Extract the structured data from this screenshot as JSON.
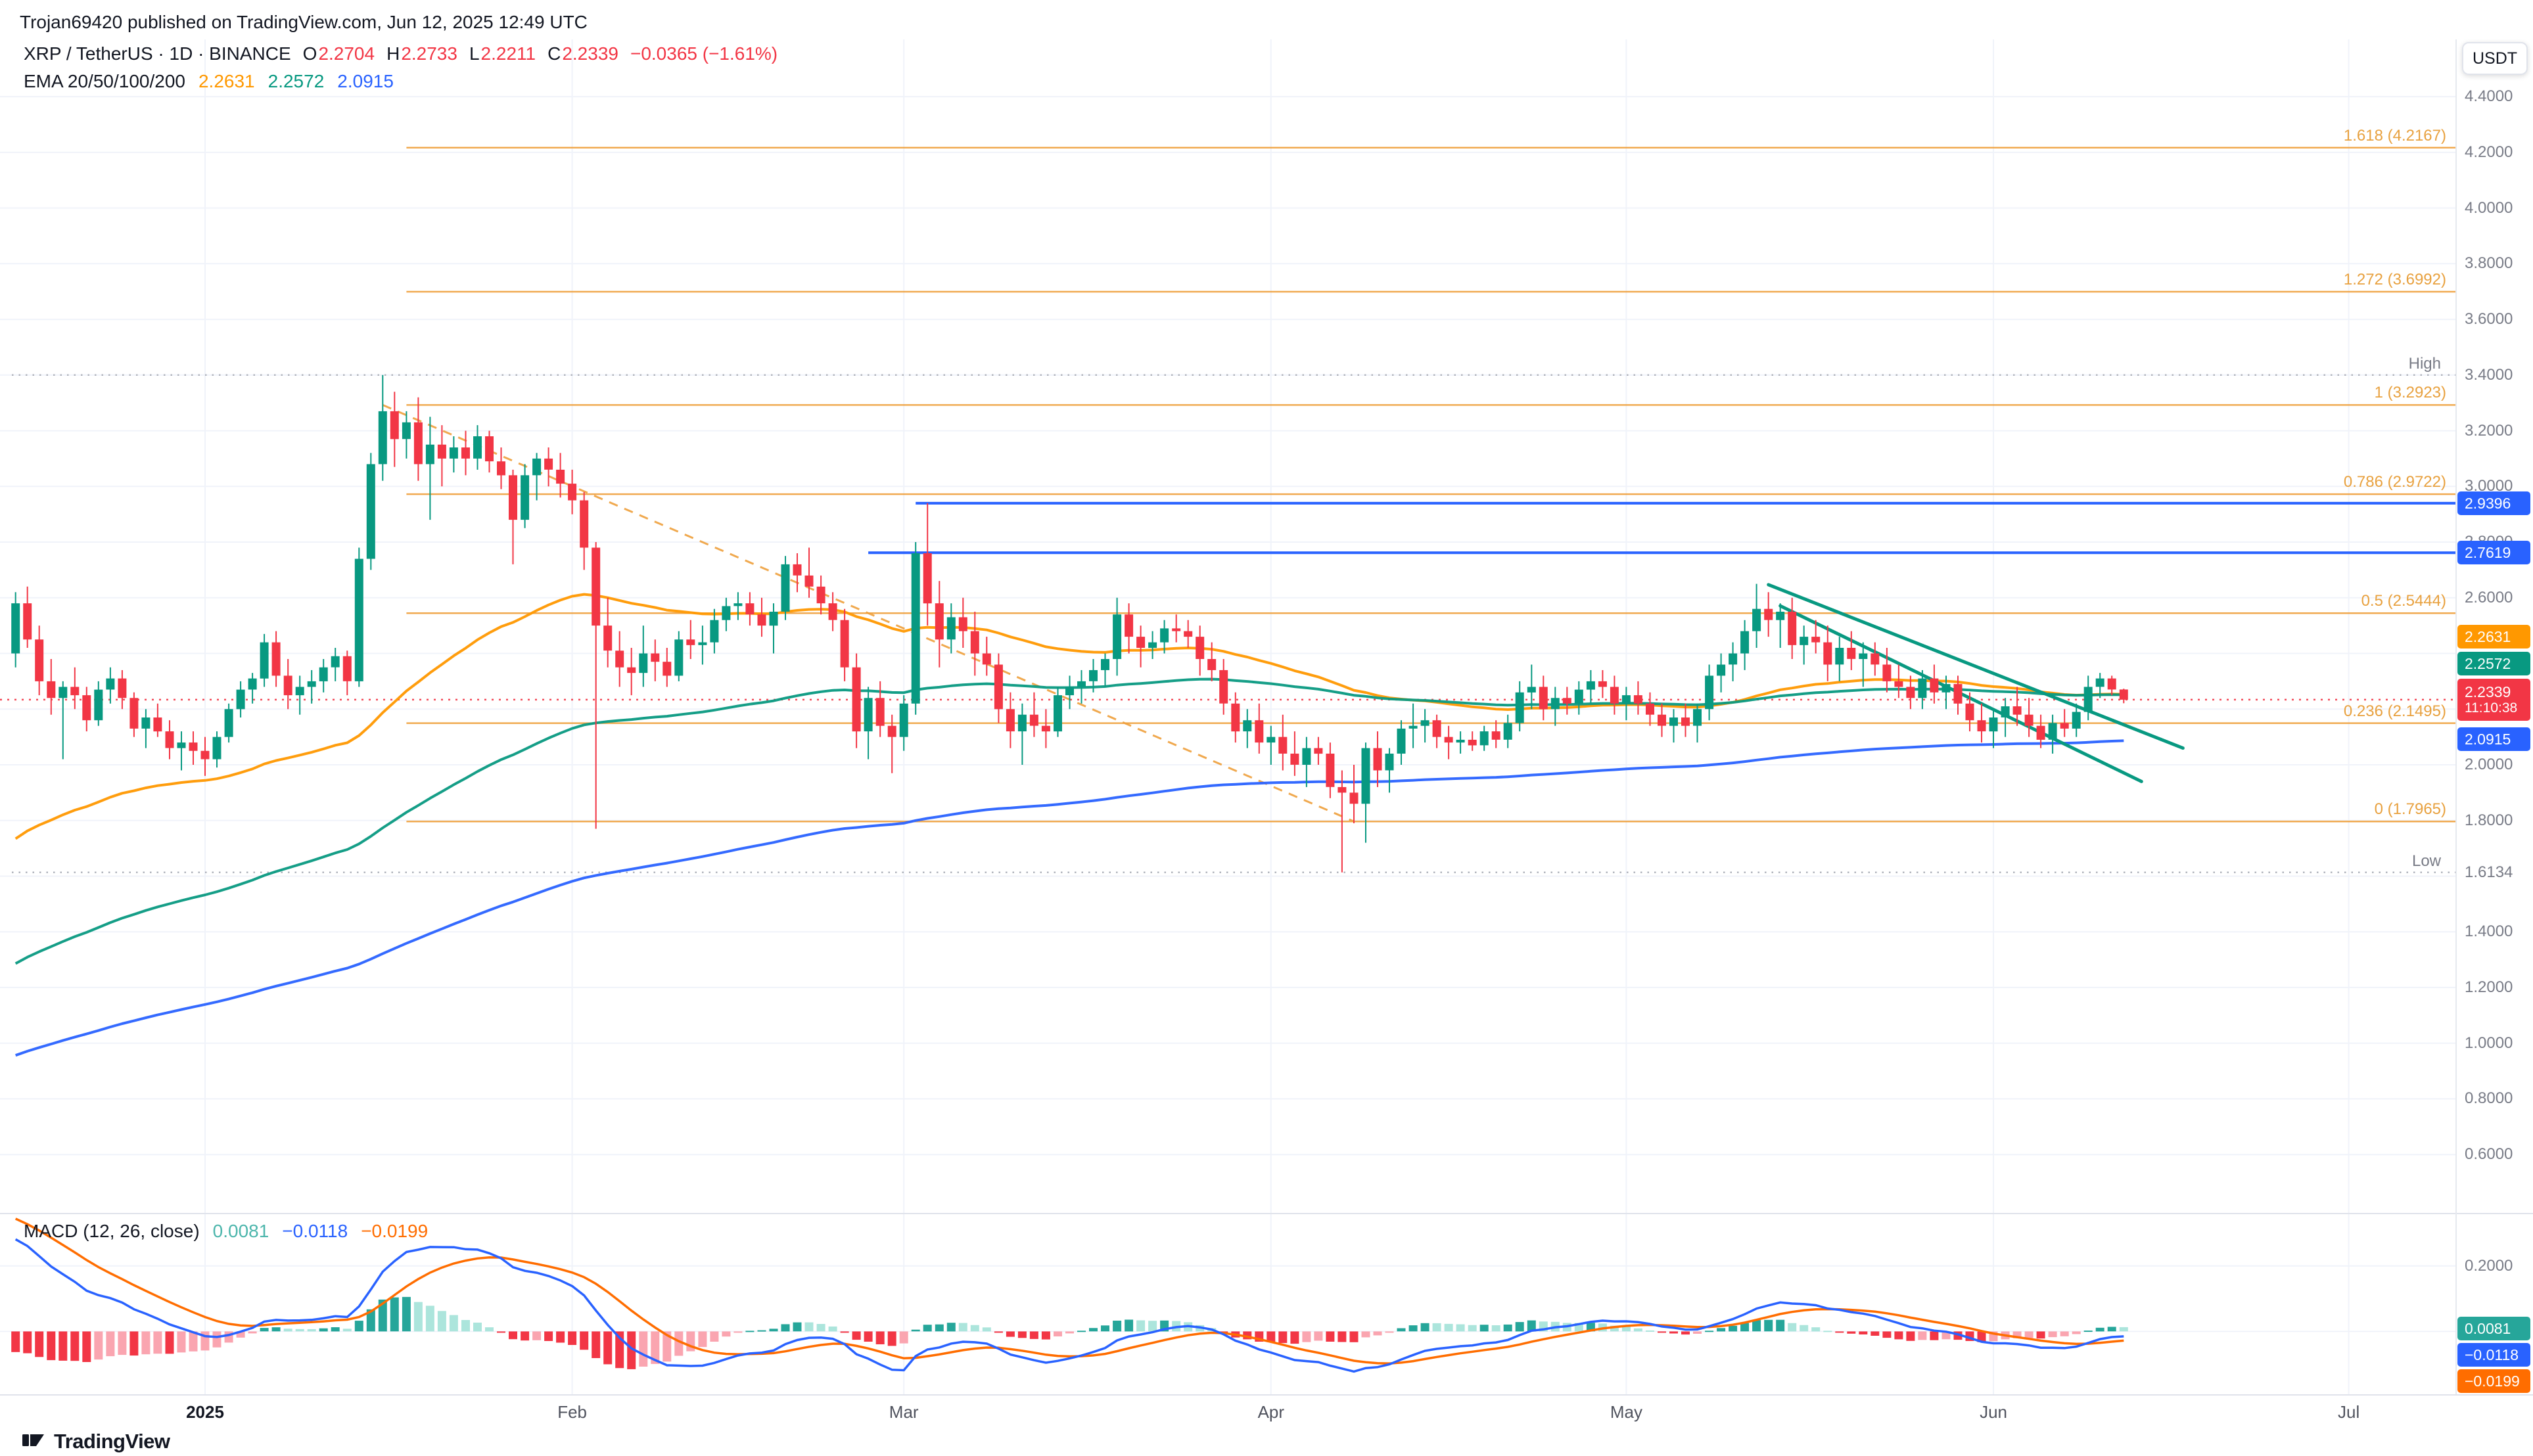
{
  "header": {
    "text": "Trojan69420 published on TradingView.com, Jun 12, 2025 12:49 UTC"
  },
  "toolbar": {
    "currency_button": "USDT"
  },
  "legend": {
    "title": "XRP / TetherUS · 1D · BINANCE",
    "ohlc": {
      "o": {
        "label": "O",
        "value": "2.2704"
      },
      "h": {
        "label": "H",
        "value": "2.2733"
      },
      "l": {
        "label": "L",
        "value": "2.2211"
      },
      "c": {
        "label": "C",
        "value": "2.2339"
      },
      "change": "−0.0365 (−1.61%)"
    },
    "ema": {
      "label": "EMA 20/50/100/200",
      "values": [
        {
          "text": "2.2631",
          "color": "#FF9800"
        },
        {
          "text": "2.2572",
          "color": "#089981"
        },
        {
          "text": "2.0915",
          "color": "#2962FF"
        }
      ]
    }
  },
  "macd_legend": {
    "label": "MACD (12, 26, close)",
    "values": [
      {
        "text": "0.0081",
        "color": "#4DB6AC"
      },
      {
        "text": "−0.0118",
        "color": "#2962FF"
      },
      {
        "text": "−0.0199",
        "color": "#FF6D00"
      }
    ]
  },
  "price_axis": {
    "high_label": "High",
    "low_label": "Low",
    "ticks": [
      {
        "text": "4.4000",
        "price": 4.4
      },
      {
        "text": "4.2000",
        "price": 4.2
      },
      {
        "text": "4.0000",
        "price": 4.0
      },
      {
        "text": "3.8000",
        "price": 3.8
      },
      {
        "text": "3.6000",
        "price": 3.6
      },
      {
        "text": "3.4000",
        "price": 3.4
      },
      {
        "text": "3.2000",
        "price": 3.2
      },
      {
        "text": "3.0000",
        "price": 3.0
      },
      {
        "text": "2.8000",
        "price": 2.8
      },
      {
        "text": "2.6000",
        "price": 2.6
      },
      {
        "text": "2.0000",
        "price": 2.0
      },
      {
        "text": "1.8000",
        "price": 1.8
      },
      {
        "text": "1.6134",
        "price": 1.6134
      },
      {
        "text": "1.4000",
        "price": 1.4
      },
      {
        "text": "1.2000",
        "price": 1.2
      },
      {
        "text": "1.0000",
        "price": 1.0
      },
      {
        "text": "0.8000",
        "price": 0.8
      },
      {
        "text": "0.6000",
        "price": 0.6
      }
    ],
    "badges": [
      {
        "text": "2.9396",
        "price": 2.9396,
        "bg": "#2962FF"
      },
      {
        "text": "2.7619",
        "price": 2.7619,
        "bg": "#2962FF"
      },
      {
        "text": "2.2631",
        "price": 2.2631,
        "bg": "#FF9800"
      },
      {
        "text": "2.2572",
        "price": 2.2572,
        "bg": "#089981"
      },
      {
        "text": "2.2339",
        "sub": "11:10:38",
        "price": 2.2339,
        "bg": "#F23645",
        "anchor": true
      },
      {
        "text": "2.0915",
        "price": 2.0915,
        "bg": "#2962FF"
      }
    ]
  },
  "macd_axis": {
    "ticks": [
      {
        "text": "0.2000",
        "value": 0.2
      }
    ],
    "badges": [
      {
        "text": "0.0081",
        "value": 0.0081,
        "bg": "#26A69A"
      },
      {
        "text": "−0.0118",
        "value": -0.0118,
        "bg": "#2962FF"
      },
      {
        "text": "−0.0199",
        "value": -0.0199,
        "bg": "#FF6D00"
      }
    ]
  },
  "time_axis": {
    "labels": [
      {
        "text": "2025",
        "index": 16,
        "major": true
      },
      {
        "text": "Feb",
        "index": 47
      },
      {
        "text": "Mar",
        "index": 75
      },
      {
        "text": "Apr",
        "index": 106
      },
      {
        "text": "May",
        "index": 136
      },
      {
        "text": "Jun",
        "index": 167
      },
      {
        "text": "Jul",
        "index": 197
      }
    ]
  },
  "footer": {
    "brand": "TradingView"
  },
  "colors": {
    "up": "#089981",
    "down": "#F23645",
    "grid": "#F0F3FA",
    "axis_text": "#787B86",
    "dark_text": "#131722",
    "fib": "#EFA03C",
    "trendline": "#089981",
    "macd_line": "#2962FF",
    "macd_signal": "#FF6D00",
    "hist_up": "#26A69A",
    "hist_up_light": "#ACE5DC",
    "hist_down": "#F23645",
    "hist_down_light": "#FAA5B0",
    "hl_dotted": "#B2B5BE"
  },
  "chart_data": {
    "type": "candlestick",
    "title": "XRP / TetherUS 1D BINANCE",
    "start_date": "2024-12-16",
    "ylim": [
      0.3927,
      4.6056
    ],
    "month_indices": [
      16,
      47,
      75,
      106,
      136,
      167,
      197
    ],
    "fib_start_index": 33,
    "fib_levels": [
      {
        "label": "1.618 (4.2167)",
        "price": 4.2167
      },
      {
        "label": "1.272 (3.6992)",
        "price": 3.6992
      },
      {
        "label": "1 (3.2923)",
        "price": 3.2923
      },
      {
        "label": "0.786 (2.9722)",
        "price": 2.9722
      },
      {
        "label": "0.5 (2.5444)",
        "price": 2.5444
      },
      {
        "label": "0.236 (2.1495)",
        "price": 2.1495
      },
      {
        "label": "0 (1.7965)",
        "price": 1.7965
      }
    ],
    "fib_trendline": {
      "from": {
        "index": 31,
        "price": 3.2923
      },
      "to": {
        "index": 113,
        "price": 1.7965
      }
    },
    "hlines": [
      {
        "price": 2.9396,
        "color": "#2962FF",
        "start_index": 76
      },
      {
        "price": 2.7619,
        "color": "#2962FF",
        "start_index": 72
      }
    ],
    "trendlines": [
      {
        "from": {
          "index": 148,
          "price": 2.647
        },
        "to": {
          "index": 183,
          "price": 2.06
        }
      },
      {
        "from": {
          "index": 149,
          "price": 2.571
        },
        "to": {
          "index": 179.5,
          "price": 1.94
        }
      }
    ],
    "high_marker": {
      "price": 3.4
    },
    "low_marker": {
      "price": 1.6134
    },
    "last_price": 2.2339,
    "countdown": "11:10:38",
    "emas": [
      {
        "period": 50,
        "seed": 1.7,
        "color": "#FF9800"
      },
      {
        "period": 100,
        "seed": 1.26,
        "color": "#089981"
      },
      {
        "period": 200,
        "seed": 0.94,
        "color": "#2962FF"
      }
    ],
    "macd": {
      "fast": 12,
      "slow": 26,
      "signal": 9,
      "seeds": {
        "ema12": 2.42,
        "ema26": 2.13,
        "signal": 0.36
      },
      "ylim": [
        -0.192,
        0.354
      ],
      "gridline": 0.2,
      "display_values": {
        "histogram": 0.0081,
        "macd": -0.0118,
        "signal": -0.0199
      }
    },
    "candles": [
      [
        2.4,
        2.62,
        2.35,
        2.58
      ],
      [
        2.58,
        2.64,
        2.42,
        2.45
      ],
      [
        2.45,
        2.5,
        2.25,
        2.3
      ],
      [
        2.3,
        2.38,
        2.18,
        2.24
      ],
      [
        2.24,
        2.3,
        2.02,
        2.28
      ],
      [
        2.28,
        2.35,
        2.2,
        2.25
      ],
      [
        2.25,
        2.28,
        2.12,
        2.16
      ],
      [
        2.16,
        2.3,
        2.14,
        2.27
      ],
      [
        2.27,
        2.35,
        2.22,
        2.31
      ],
      [
        2.31,
        2.34,
        2.2,
        2.24
      ],
      [
        2.24,
        2.26,
        2.1,
        2.13
      ],
      [
        2.13,
        2.2,
        2.06,
        2.17
      ],
      [
        2.17,
        2.22,
        2.1,
        2.12
      ],
      [
        2.12,
        2.16,
        2.02,
        2.06
      ],
      [
        2.06,
        2.12,
        1.98,
        2.08
      ],
      [
        2.08,
        2.12,
        2.0,
        2.05
      ],
      [
        2.05,
        2.1,
        1.96,
        2.02
      ],
      [
        2.02,
        2.12,
        1.99,
        2.1
      ],
      [
        2.1,
        2.22,
        2.08,
        2.2
      ],
      [
        2.2,
        2.3,
        2.17,
        2.27
      ],
      [
        2.27,
        2.33,
        2.22,
        2.31
      ],
      [
        2.31,
        2.47,
        2.28,
        2.44
      ],
      [
        2.44,
        2.48,
        2.28,
        2.32
      ],
      [
        2.32,
        2.38,
        2.2,
        2.25
      ],
      [
        2.25,
        2.32,
        2.18,
        2.28
      ],
      [
        2.28,
        2.34,
        2.22,
        2.3
      ],
      [
        2.3,
        2.38,
        2.26,
        2.35
      ],
      [
        2.35,
        2.42,
        2.3,
        2.39
      ],
      [
        2.39,
        2.41,
        2.25,
        2.3
      ],
      [
        2.3,
        2.78,
        2.28,
        2.74
      ],
      [
        2.74,
        3.12,
        2.7,
        3.08
      ],
      [
        3.08,
        3.4,
        3.02,
        3.27
      ],
      [
        3.27,
        3.34,
        3.07,
        3.17
      ],
      [
        3.17,
        3.27,
        3.1,
        3.23
      ],
      [
        3.23,
        3.32,
        3.02,
        3.08
      ],
      [
        3.08,
        3.25,
        2.88,
        3.15
      ],
      [
        3.15,
        3.22,
        3.0,
        3.1
      ],
      [
        3.1,
        3.18,
        3.05,
        3.14
      ],
      [
        3.14,
        3.2,
        3.04,
        3.1
      ],
      [
        3.1,
        3.22,
        3.06,
        3.18
      ],
      [
        3.18,
        3.2,
        3.05,
        3.09
      ],
      [
        3.09,
        3.14,
        2.99,
        3.04
      ],
      [
        3.04,
        3.06,
        2.72,
        2.88
      ],
      [
        2.88,
        3.08,
        2.85,
        3.04
      ],
      [
        3.04,
        3.12,
        2.95,
        3.1
      ],
      [
        3.1,
        3.14,
        3.0,
        3.06
      ],
      [
        3.06,
        3.12,
        2.96,
        3.01
      ],
      [
        3.01,
        3.06,
        2.9,
        2.95
      ],
      [
        2.95,
        2.98,
        2.7,
        2.78
      ],
      [
        2.78,
        2.8,
        1.77,
        2.5
      ],
      [
        2.5,
        2.6,
        2.35,
        2.41
      ],
      [
        2.41,
        2.48,
        2.28,
        2.35
      ],
      [
        2.35,
        2.42,
        2.25,
        2.33
      ],
      [
        2.33,
        2.5,
        2.28,
        2.4
      ],
      [
        2.4,
        2.45,
        2.3,
        2.37
      ],
      [
        2.37,
        2.42,
        2.28,
        2.32
      ],
      [
        2.32,
        2.48,
        2.3,
        2.45
      ],
      [
        2.45,
        2.52,
        2.38,
        2.43
      ],
      [
        2.43,
        2.5,
        2.36,
        2.44
      ],
      [
        2.44,
        2.56,
        2.4,
        2.52
      ],
      [
        2.52,
        2.6,
        2.48,
        2.57
      ],
      [
        2.57,
        2.62,
        2.52,
        2.58
      ],
      [
        2.58,
        2.62,
        2.5,
        2.54
      ],
      [
        2.54,
        2.6,
        2.46,
        2.5
      ],
      [
        2.5,
        2.58,
        2.4,
        2.55
      ],
      [
        2.55,
        2.75,
        2.52,
        2.72
      ],
      [
        2.72,
        2.76,
        2.62,
        2.68
      ],
      [
        2.68,
        2.78,
        2.6,
        2.64
      ],
      [
        2.64,
        2.68,
        2.54,
        2.58
      ],
      [
        2.58,
        2.62,
        2.48,
        2.52
      ],
      [
        2.52,
        2.56,
        2.3,
        2.35
      ],
      [
        2.35,
        2.4,
        2.06,
        2.12
      ],
      [
        2.12,
        2.28,
        2.02,
        2.24
      ],
      [
        2.24,
        2.3,
        2.1,
        2.14
      ],
      [
        2.14,
        2.18,
        1.97,
        2.1
      ],
      [
        2.1,
        2.25,
        2.05,
        2.22
      ],
      [
        2.22,
        2.8,
        2.18,
        2.76
      ],
      [
        2.76,
        2.94,
        2.5,
        2.58
      ],
      [
        2.58,
        2.66,
        2.35,
        2.45
      ],
      [
        2.45,
        2.58,
        2.4,
        2.53
      ],
      [
        2.53,
        2.6,
        2.42,
        2.48
      ],
      [
        2.48,
        2.55,
        2.32,
        2.4
      ],
      [
        2.4,
        2.46,
        2.32,
        2.36
      ],
      [
        2.36,
        2.4,
        2.15,
        2.2
      ],
      [
        2.2,
        2.26,
        2.06,
        2.12
      ],
      [
        2.12,
        2.22,
        2.0,
        2.18
      ],
      [
        2.18,
        2.26,
        2.1,
        2.14
      ],
      [
        2.14,
        2.2,
        2.06,
        2.12
      ],
      [
        2.12,
        2.28,
        2.1,
        2.25
      ],
      [
        2.25,
        2.32,
        2.2,
        2.28
      ],
      [
        2.28,
        2.34,
        2.22,
        2.3
      ],
      [
        2.3,
        2.38,
        2.26,
        2.34
      ],
      [
        2.34,
        2.4,
        2.28,
        2.38
      ],
      [
        2.38,
        2.6,
        2.32,
        2.54
      ],
      [
        2.54,
        2.58,
        2.4,
        2.46
      ],
      [
        2.46,
        2.5,
        2.35,
        2.42
      ],
      [
        2.42,
        2.48,
        2.38,
        2.44
      ],
      [
        2.44,
        2.52,
        2.4,
        2.49
      ],
      [
        2.49,
        2.54,
        2.44,
        2.48
      ],
      [
        2.48,
        2.52,
        2.42,
        2.46
      ],
      [
        2.46,
        2.5,
        2.32,
        2.38
      ],
      [
        2.38,
        2.44,
        2.3,
        2.34
      ],
      [
        2.34,
        2.38,
        2.18,
        2.22
      ],
      [
        2.22,
        2.26,
        2.08,
        2.12
      ],
      [
        2.12,
        2.2,
        2.06,
        2.16
      ],
      [
        2.16,
        2.22,
        2.04,
        2.08
      ],
      [
        2.08,
        2.14,
        2.0,
        2.1
      ],
      [
        2.1,
        2.18,
        1.98,
        2.04
      ],
      [
        2.04,
        2.12,
        1.96,
        2.0
      ],
      [
        2.0,
        2.1,
        1.92,
        2.06
      ],
      [
        2.06,
        2.1,
        2.0,
        2.04
      ],
      [
        2.04,
        2.08,
        1.88,
        1.92
      ],
      [
        1.92,
        1.98,
        1.6134,
        1.9
      ],
      [
        1.9,
        2.0,
        1.79,
        1.86
      ],
      [
        1.86,
        2.08,
        1.72,
        2.06
      ],
      [
        2.06,
        2.12,
        1.92,
        1.98
      ],
      [
        1.98,
        2.06,
        1.9,
        2.04
      ],
      [
        2.04,
        2.16,
        2.0,
        2.13
      ],
      [
        2.13,
        2.22,
        2.06,
        2.14
      ],
      [
        2.14,
        2.2,
        2.08,
        2.16
      ],
      [
        2.16,
        2.18,
        2.06,
        2.1
      ],
      [
        2.1,
        2.14,
        2.02,
        2.08
      ],
      [
        2.08,
        2.12,
        2.04,
        2.09
      ],
      [
        2.09,
        2.12,
        2.05,
        2.07
      ],
      [
        2.07,
        2.14,
        2.05,
        2.12
      ],
      [
        2.12,
        2.16,
        2.06,
        2.09
      ],
      [
        2.09,
        2.18,
        2.06,
        2.15
      ],
      [
        2.15,
        2.3,
        2.12,
        2.26
      ],
      [
        2.26,
        2.36,
        2.2,
        2.28
      ],
      [
        2.28,
        2.32,
        2.16,
        2.2
      ],
      [
        2.2,
        2.28,
        2.14,
        2.24
      ],
      [
        2.24,
        2.28,
        2.18,
        2.22
      ],
      [
        2.22,
        2.3,
        2.18,
        2.27
      ],
      [
        2.27,
        2.34,
        2.22,
        2.3
      ],
      [
        2.3,
        2.34,
        2.24,
        2.28
      ],
      [
        2.28,
        2.32,
        2.18,
        2.22
      ],
      [
        2.22,
        2.28,
        2.16,
        2.25
      ],
      [
        2.25,
        2.3,
        2.18,
        2.22
      ],
      [
        2.22,
        2.26,
        2.14,
        2.18
      ],
      [
        2.18,
        2.22,
        2.1,
        2.14
      ],
      [
        2.14,
        2.2,
        2.08,
        2.17
      ],
      [
        2.17,
        2.22,
        2.1,
        2.14
      ],
      [
        2.14,
        2.22,
        2.08,
        2.2
      ],
      [
        2.2,
        2.36,
        2.16,
        2.32
      ],
      [
        2.32,
        2.4,
        2.26,
        2.36
      ],
      [
        2.36,
        2.44,
        2.3,
        2.4
      ],
      [
        2.4,
        2.52,
        2.34,
        2.48
      ],
      [
        2.48,
        2.65,
        2.42,
        2.56
      ],
      [
        2.56,
        2.62,
        2.46,
        2.52
      ],
      [
        2.52,
        2.58,
        2.42,
        2.55
      ],
      [
        2.55,
        2.6,
        2.38,
        2.43
      ],
      [
        2.43,
        2.5,
        2.36,
        2.46
      ],
      [
        2.46,
        2.52,
        2.4,
        2.44
      ],
      [
        2.44,
        2.5,
        2.3,
        2.36
      ],
      [
        2.36,
        2.46,
        2.3,
        2.42
      ],
      [
        2.42,
        2.48,
        2.34,
        2.38
      ],
      [
        2.38,
        2.44,
        2.28,
        2.4
      ],
      [
        2.4,
        2.44,
        2.32,
        2.36
      ],
      [
        2.36,
        2.42,
        2.26,
        2.3
      ],
      [
        2.3,
        2.36,
        2.24,
        2.28
      ],
      [
        2.28,
        2.32,
        2.2,
        2.24
      ],
      [
        2.24,
        2.34,
        2.2,
        2.31
      ],
      [
        2.31,
        2.36,
        2.22,
        2.26
      ],
      [
        2.26,
        2.32,
        2.2,
        2.29
      ],
      [
        2.29,
        2.32,
        2.18,
        2.22
      ],
      [
        2.22,
        2.26,
        2.12,
        2.16
      ],
      [
        2.16,
        2.22,
        2.08,
        2.12
      ],
      [
        2.12,
        2.2,
        2.06,
        2.17
      ],
      [
        2.17,
        2.24,
        2.1,
        2.21
      ],
      [
        2.21,
        2.28,
        2.14,
        2.18
      ],
      [
        2.18,
        2.24,
        2.1,
        2.14
      ],
      [
        2.14,
        2.18,
        2.06,
        2.09
      ],
      [
        2.09,
        2.18,
        2.04,
        2.15
      ],
      [
        2.15,
        2.2,
        2.1,
        2.13
      ],
      [
        2.13,
        2.22,
        2.1,
        2.19
      ],
      [
        2.19,
        2.32,
        2.16,
        2.28
      ],
      [
        2.28,
        2.33,
        2.24,
        2.31
      ],
      [
        2.31,
        2.32,
        2.25,
        2.2704
      ],
      [
        2.2704,
        2.2733,
        2.2211,
        2.2339
      ]
    ]
  }
}
